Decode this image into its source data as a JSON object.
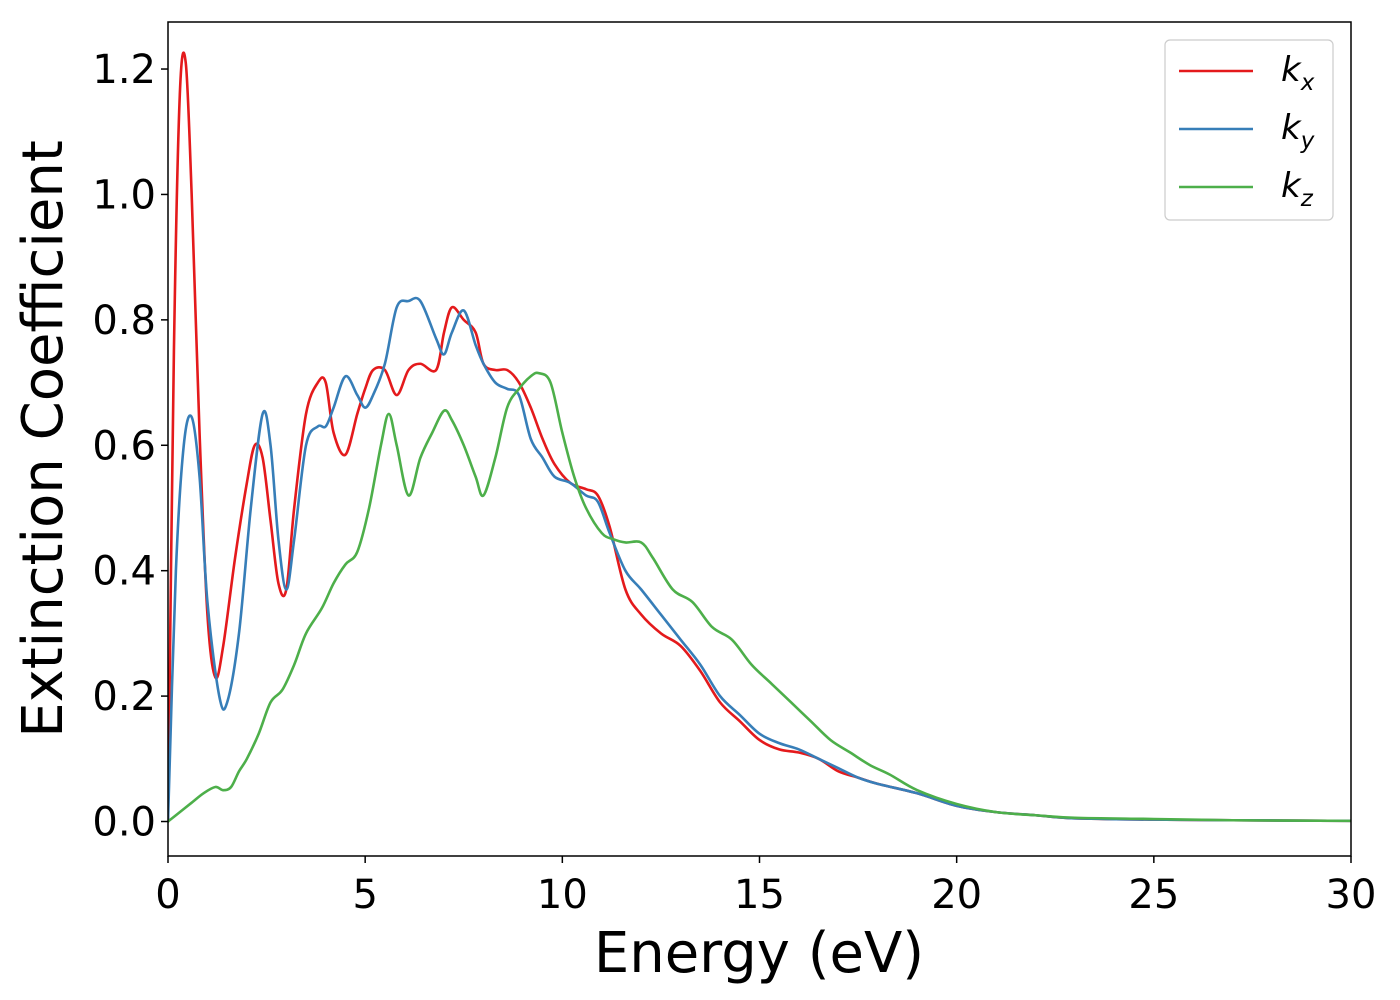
{
  "chart_data": {
    "type": "line",
    "title": "",
    "xlabel": "Energy (eV)",
    "ylabel": "Extinction Coefficient",
    "xlim": [
      0,
      30
    ],
    "ylim": [
      -0.055,
      1.275
    ],
    "xticks": [
      0,
      5,
      10,
      15,
      20,
      25,
      30
    ],
    "xtick_labels": [
      "0",
      "5",
      "10",
      "15",
      "20",
      "25",
      "30"
    ],
    "yticks": [
      0.0,
      0.2,
      0.4,
      0.6,
      0.8,
      1.0,
      1.2
    ],
    "ytick_labels": [
      "0.0",
      "0.2",
      "0.4",
      "0.6",
      "0.8",
      "1.0",
      "1.2"
    ],
    "grid": false,
    "legend_position": "top-right",
    "series": [
      {
        "name": "k",
        "subscript": "x",
        "color": "#e41a1c",
        "x": [
          0,
          0.15,
          0.3,
          0.45,
          0.6,
          0.8,
          1.0,
          1.2,
          1.4,
          1.7,
          2.0,
          2.2,
          2.4,
          2.6,
          2.8,
          3.0,
          3.2,
          3.5,
          3.8,
          4.0,
          4.2,
          4.5,
          4.8,
          5.0,
          5.2,
          5.5,
          5.8,
          6.1,
          6.4,
          6.8,
          7.0,
          7.2,
          7.5,
          7.8,
          8.0,
          8.3,
          8.6,
          8.9,
          9.2,
          9.5,
          9.8,
          10.2,
          10.6,
          10.9,
          11.2,
          11.6,
          12.0,
          12.5,
          13.0,
          13.5,
          14.0,
          14.5,
          15.0,
          15.5,
          16.0,
          16.5,
          17.0,
          17.5,
          18.0,
          19.0,
          20.0,
          21.0,
          22.0,
          23.0,
          25.0,
          27.0,
          30.0
        ],
        "values": [
          0.0,
          0.75,
          1.16,
          1.21,
          1.0,
          0.62,
          0.33,
          0.23,
          0.28,
          0.42,
          0.54,
          0.6,
          0.58,
          0.48,
          0.38,
          0.37,
          0.5,
          0.65,
          0.7,
          0.7,
          0.62,
          0.585,
          0.65,
          0.69,
          0.72,
          0.72,
          0.68,
          0.72,
          0.73,
          0.72,
          0.78,
          0.82,
          0.8,
          0.78,
          0.73,
          0.72,
          0.72,
          0.7,
          0.66,
          0.61,
          0.57,
          0.54,
          0.53,
          0.52,
          0.47,
          0.37,
          0.33,
          0.3,
          0.28,
          0.24,
          0.19,
          0.16,
          0.13,
          0.115,
          0.11,
          0.1,
          0.08,
          0.07,
          0.06,
          0.045,
          0.025,
          0.015,
          0.01,
          0.005,
          0.003,
          0.002,
          0.001
        ]
      },
      {
        "name": "k",
        "subscript": "y",
        "color": "#377eb8",
        "x": [
          0,
          0.2,
          0.4,
          0.6,
          0.8,
          1.0,
          1.3,
          1.5,
          1.8,
          2.1,
          2.4,
          2.6,
          2.8,
          3.0,
          3.2,
          3.5,
          3.8,
          4.0,
          4.2,
          4.5,
          4.8,
          5.0,
          5.2,
          5.5,
          5.8,
          6.1,
          6.4,
          6.8,
          7.0,
          7.2,
          7.5,
          7.8,
          8.0,
          8.3,
          8.6,
          8.9,
          9.2,
          9.5,
          9.8,
          10.2,
          10.6,
          10.9,
          11.2,
          11.6,
          12.0,
          12.5,
          13.0,
          13.5,
          14.0,
          14.5,
          15.0,
          15.5,
          16.0,
          16.5,
          17.0,
          17.5,
          18.0,
          19.0,
          20.0,
          21.0,
          22.0,
          23.0,
          25.0,
          27.0,
          30.0
        ],
        "values": [
          0.0,
          0.4,
          0.6,
          0.645,
          0.55,
          0.35,
          0.2,
          0.19,
          0.3,
          0.5,
          0.65,
          0.6,
          0.45,
          0.37,
          0.45,
          0.6,
          0.63,
          0.63,
          0.66,
          0.71,
          0.68,
          0.66,
          0.68,
          0.73,
          0.82,
          0.83,
          0.83,
          0.77,
          0.745,
          0.78,
          0.815,
          0.76,
          0.73,
          0.7,
          0.69,
          0.68,
          0.61,
          0.58,
          0.55,
          0.54,
          0.52,
          0.51,
          0.46,
          0.4,
          0.37,
          0.33,
          0.29,
          0.25,
          0.2,
          0.17,
          0.14,
          0.125,
          0.115,
          0.1,
          0.085,
          0.07,
          0.06,
          0.045,
          0.025,
          0.015,
          0.01,
          0.005,
          0.003,
          0.002,
          0.001
        ]
      },
      {
        "name": "k",
        "subscript": "z",
        "color": "#4daf4a",
        "x": [
          0,
          0.3,
          0.6,
          0.9,
          1.2,
          1.4,
          1.6,
          1.8,
          2.0,
          2.3,
          2.6,
          2.9,
          3.2,
          3.5,
          3.9,
          4.2,
          4.5,
          4.8,
          5.1,
          5.4,
          5.6,
          5.8,
          6.1,
          6.4,
          6.7,
          7.0,
          7.2,
          7.5,
          7.8,
          8.0,
          8.3,
          8.6,
          8.9,
          9.2,
          9.4,
          9.7,
          10.0,
          10.3,
          10.6,
          11.0,
          11.3,
          11.6,
          12.0,
          12.3,
          12.8,
          13.3,
          13.8,
          14.3,
          14.8,
          15.3,
          15.8,
          16.3,
          16.8,
          17.3,
          17.8,
          18.3,
          19.0,
          20.0,
          21.0,
          22.0,
          23.0,
          25.0,
          27.0,
          30.0
        ],
        "values": [
          0.0,
          0.015,
          0.03,
          0.045,
          0.055,
          0.05,
          0.055,
          0.08,
          0.1,
          0.14,
          0.19,
          0.21,
          0.25,
          0.3,
          0.34,
          0.38,
          0.41,
          0.43,
          0.5,
          0.6,
          0.65,
          0.6,
          0.52,
          0.58,
          0.62,
          0.655,
          0.64,
          0.6,
          0.55,
          0.52,
          0.58,
          0.66,
          0.69,
          0.71,
          0.715,
          0.7,
          0.62,
          0.55,
          0.5,
          0.46,
          0.45,
          0.445,
          0.445,
          0.42,
          0.37,
          0.35,
          0.31,
          0.29,
          0.25,
          0.22,
          0.19,
          0.16,
          0.13,
          0.11,
          0.09,
          0.075,
          0.05,
          0.028,
          0.015,
          0.01,
          0.006,
          0.004,
          0.002,
          0.001
        ]
      }
    ]
  }
}
